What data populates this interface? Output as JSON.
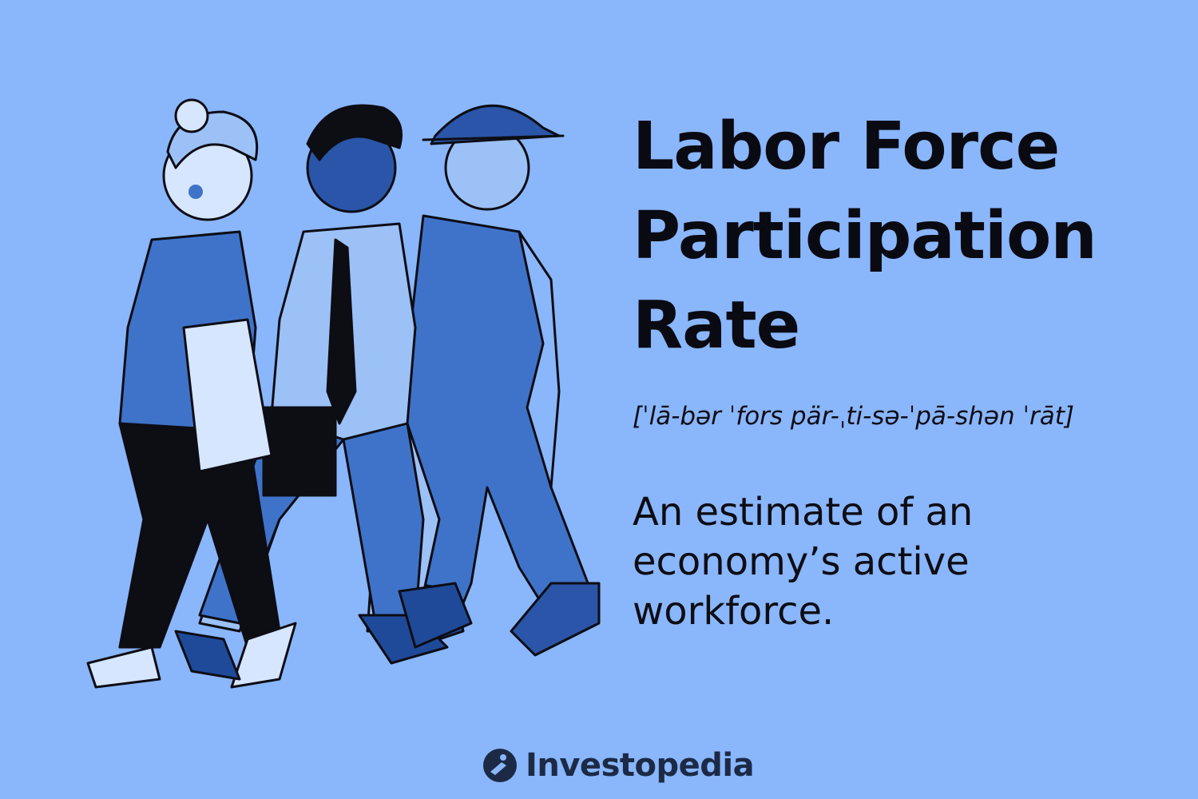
{
  "title": {
    "lines": [
      "Labor Force",
      "Participation",
      "Rate"
    ]
  },
  "pronunciation": "[ˈlā-bər ˈfors pär-ˌti-sə-ˈpā-shən ˈrāt]",
  "definition": {
    "lines": [
      "An estimate of an",
      "economy’s active",
      "workforce."
    ]
  },
  "brand": {
    "name": "Investopedia",
    "logo_icon": "investopedia-logo-icon"
  },
  "colors": {
    "background": "#8AB6FB",
    "ink": "#0d0d14",
    "figure_dark": "#1f4a9a",
    "figure_mid": "#3f73c9",
    "figure_light": "#9cc1f7"
  }
}
